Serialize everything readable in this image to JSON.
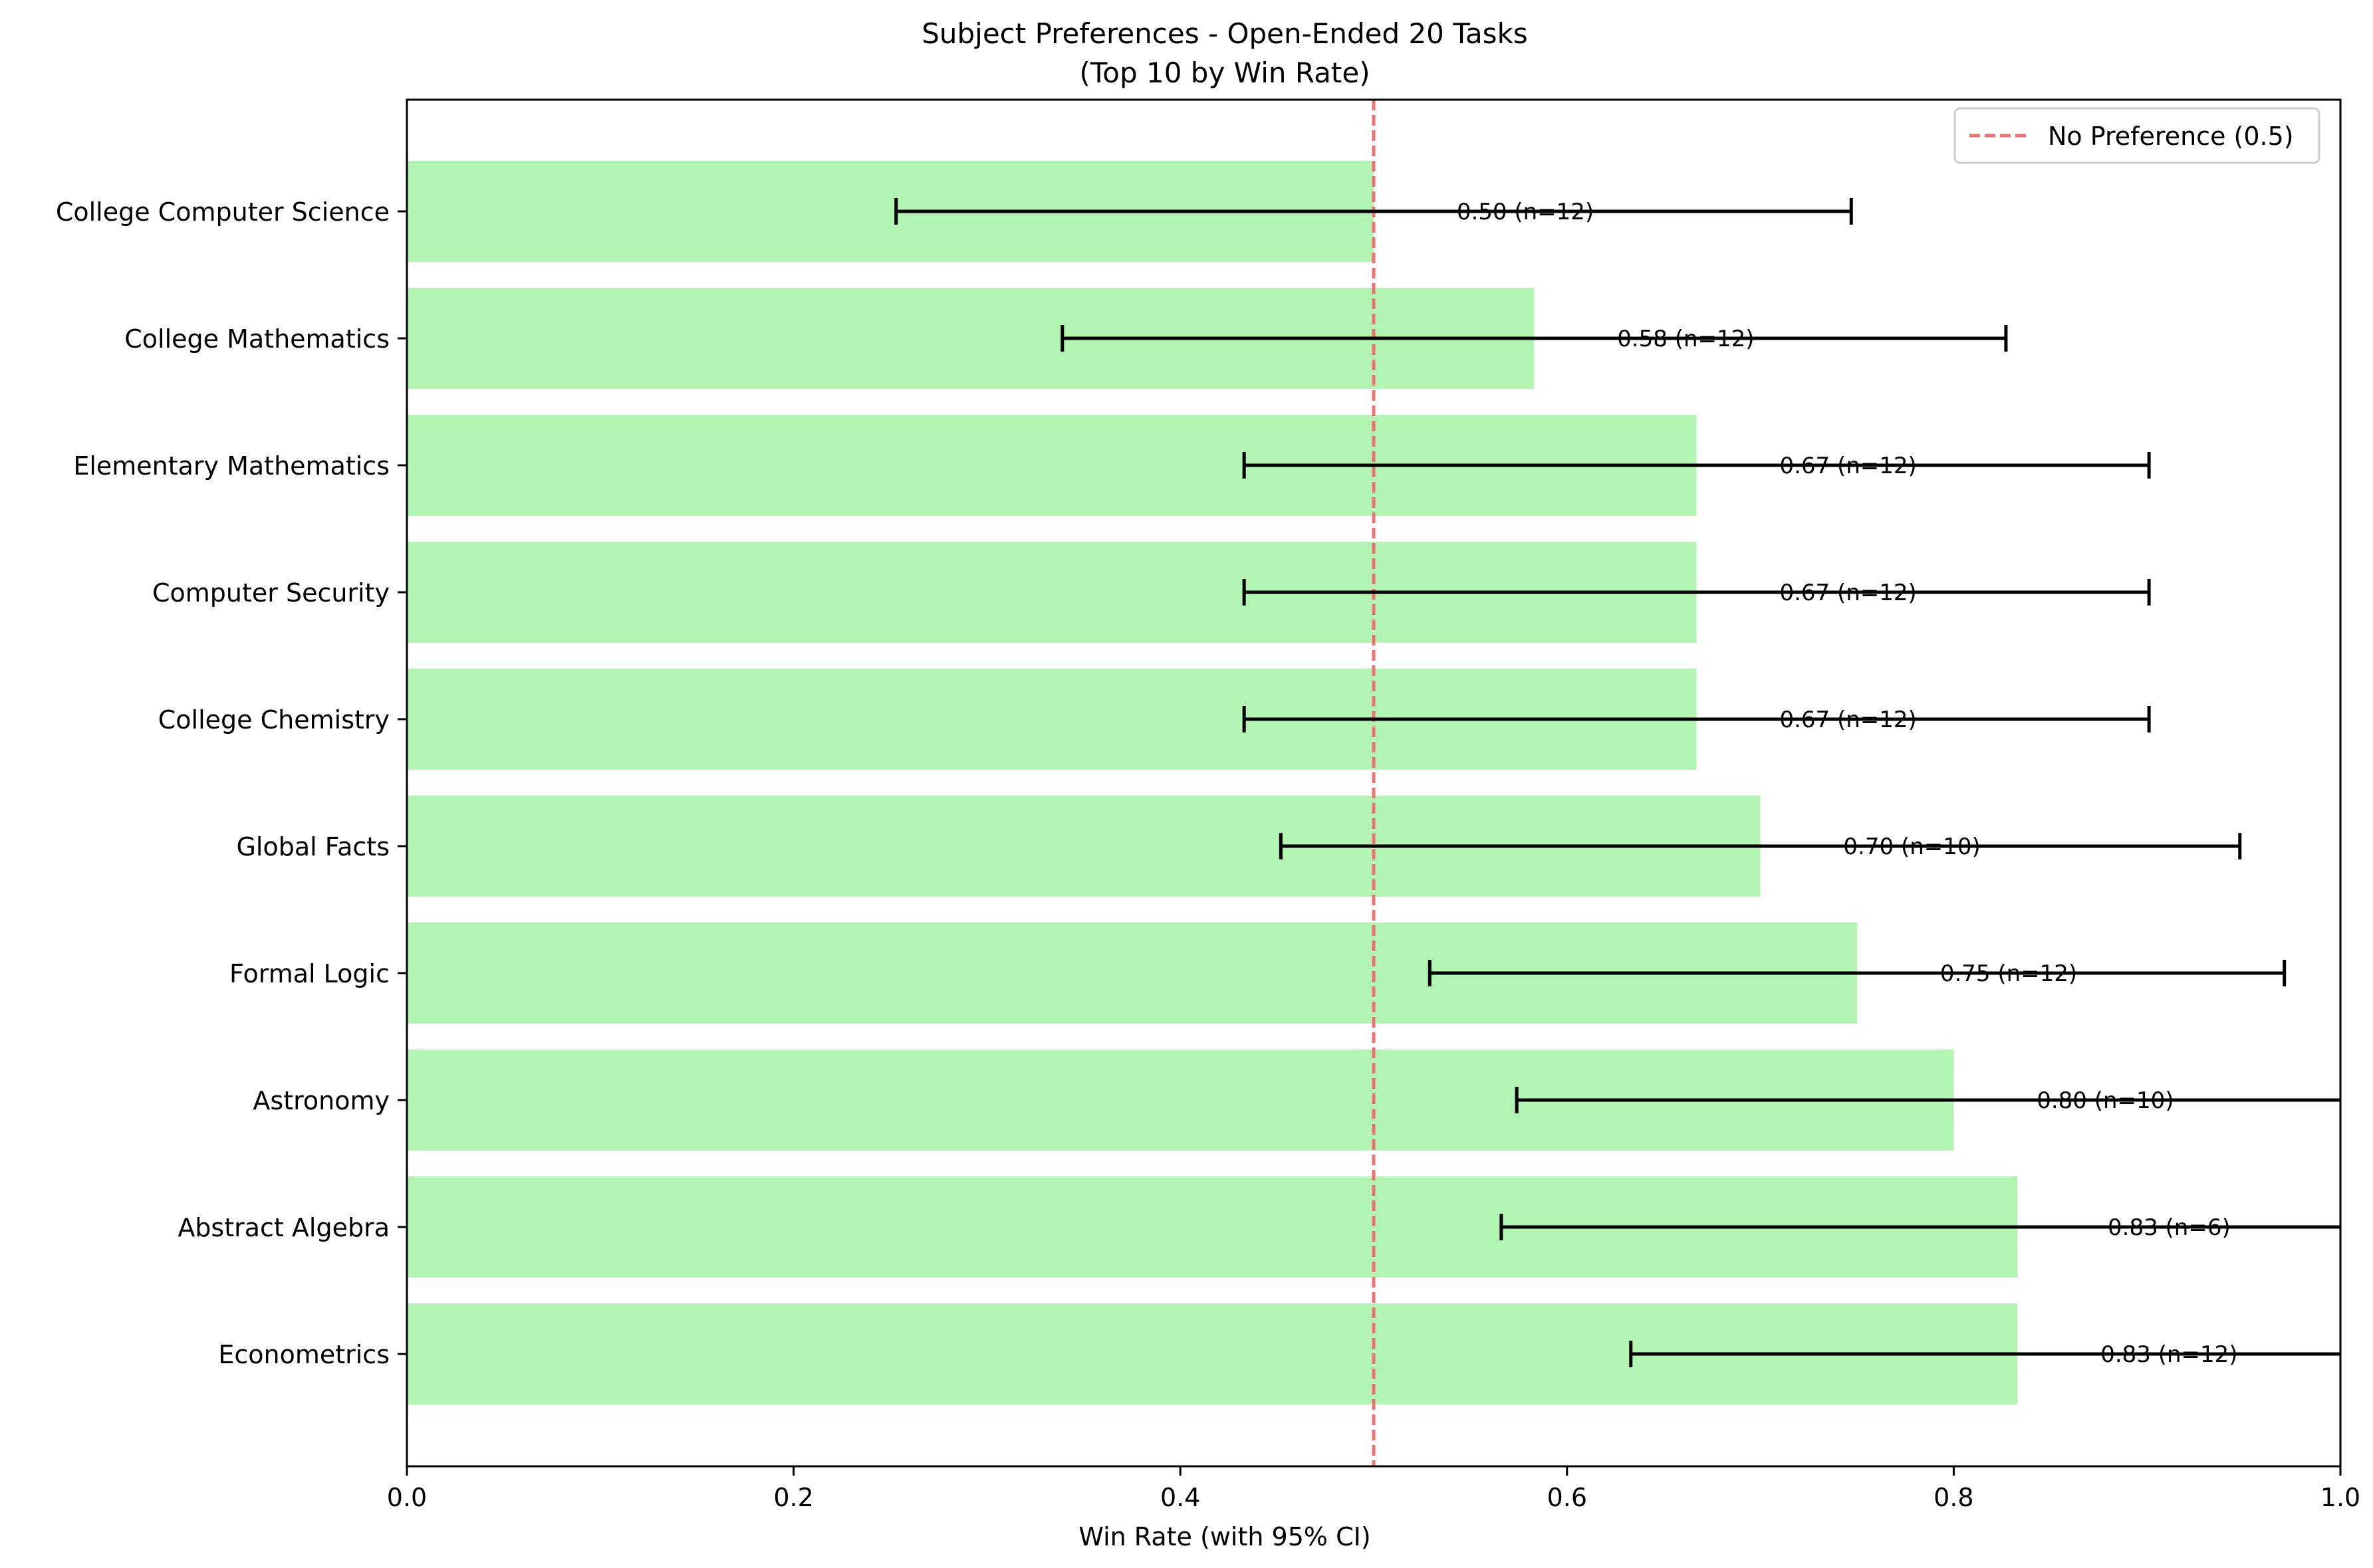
{
  "chart_data": {
    "type": "bar",
    "orientation": "horizontal",
    "title": "Subject Preferences - Open-Ended 20 Tasks",
    "subtitle": "(Top 10 by Win Rate)",
    "xlabel": "Win Rate (with 95% CI)",
    "ylabel": "",
    "xlim": [
      0,
      1
    ],
    "xticks": [
      "0.0",
      "0.2",
      "0.4",
      "0.6",
      "0.8",
      "1.0"
    ],
    "grid": false,
    "legend": {
      "position": "top-right",
      "entries": [
        "No Preference (0.5)"
      ]
    },
    "reference_line": {
      "value": 0.5,
      "style": "dashed",
      "color": "#f07070",
      "label": "No Preference (0.5)"
    },
    "bar_color": "#b2f4b2",
    "categories": [
      "College Computer Science",
      "College Mathematics",
      "Elementary Mathematics",
      "Computer Security",
      "College Chemistry",
      "Global Facts",
      "Formal Logic",
      "Astronomy",
      "Abstract Algebra",
      "Econometrics"
    ],
    "values": [
      0.5,
      0.583,
      0.667,
      0.667,
      0.667,
      0.7,
      0.75,
      0.8,
      0.833,
      0.833
    ],
    "ci_lower": [
      0.253,
      0.339,
      0.433,
      0.433,
      0.433,
      0.452,
      0.529,
      0.574,
      0.566,
      0.633
    ],
    "ci_upper": [
      0.747,
      0.827,
      0.901,
      0.901,
      0.901,
      0.948,
      0.971,
      1.026,
      1.1,
      1.1
    ],
    "data_labels": [
      "0.50 (n=12)",
      "0.58 (n=12)",
      "0.67 (n=12)",
      "0.67 (n=12)",
      "0.67 (n=12)",
      "0.70 (n=10)",
      "0.75 (n=12)",
      "0.80 (n=10)",
      "0.83 (n=6)",
      "0.83 (n=12)"
    ]
  }
}
